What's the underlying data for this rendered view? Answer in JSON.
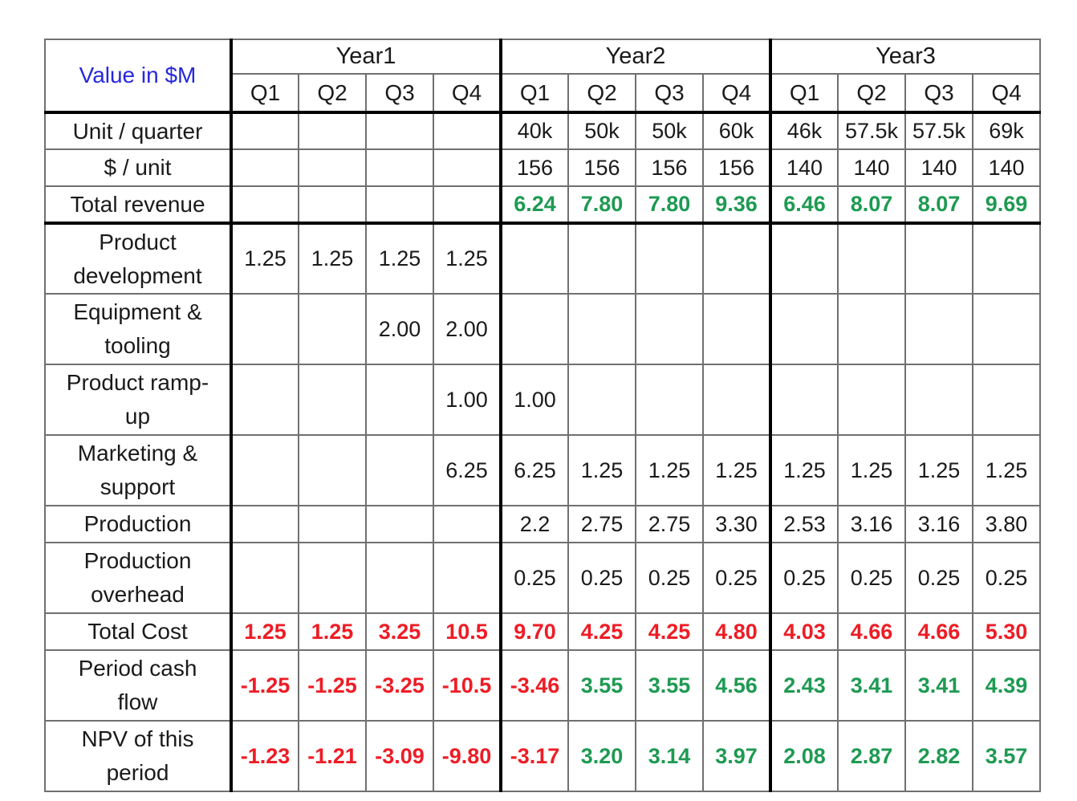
{
  "palette": {
    "title_blue": "#2727DC",
    "positive_green": "#1E9A52",
    "negative_red": "#EE1C25",
    "grid_gray": "#707070",
    "separator_black": "#000000",
    "text_black": "#1A1A1A"
  },
  "table": {
    "corner_label": "Value in $M",
    "year_headers": [
      "Year1",
      "Year2",
      "Year3"
    ],
    "quarter_headers": [
      "Q1",
      "Q2",
      "Q3",
      "Q4",
      "Q1",
      "Q2",
      "Q3",
      "Q4",
      "Q1",
      "Q2",
      "Q3",
      "Q4"
    ],
    "rows": [
      {
        "label": "Unit / quarter",
        "color": "black",
        "values": [
          "",
          "",
          "",
          "",
          "40k",
          "50k",
          "50k",
          "60k",
          "46k",
          "57.5k",
          "57.5k",
          "69k"
        ]
      },
      {
        "label": "$ / unit",
        "color": "black",
        "values": [
          "",
          "",
          "",
          "",
          "156",
          "156",
          "156",
          "156",
          "140",
          "140",
          "140",
          "140"
        ]
      },
      {
        "label": "Total revenue",
        "color": "green",
        "values": [
          "",
          "",
          "",
          "",
          "6.24",
          "7.80",
          "7.80",
          "9.36",
          "6.46",
          "8.07",
          "8.07",
          "9.69"
        ]
      },
      {
        "label": "Product development",
        "color": "black",
        "values": [
          "1.25",
          "1.25",
          "1.25",
          "1.25",
          "",
          "",
          "",
          "",
          "",
          "",
          "",
          ""
        ]
      },
      {
        "label": "Equipment & tooling",
        "color": "black",
        "values": [
          "",
          "",
          "2.00",
          "2.00",
          "",
          "",
          "",
          "",
          "",
          "",
          "",
          ""
        ]
      },
      {
        "label": "Product ramp-up",
        "color": "black",
        "values": [
          "",
          "",
          "",
          "1.00",
          "1.00",
          "",
          "",
          "",
          "",
          "",
          "",
          ""
        ]
      },
      {
        "label": "Marketing & support",
        "color": "black",
        "values": [
          "",
          "",
          "",
          "6.25",
          "6.25",
          "1.25",
          "1.25",
          "1.25",
          "1.25",
          "1.25",
          "1.25",
          "1.25"
        ]
      },
      {
        "label": "Production",
        "color": "black",
        "values": [
          "",
          "",
          "",
          "",
          "2.2",
          "2.75",
          "2.75",
          "3.30",
          "2.53",
          "3.16",
          "3.16",
          "3.80"
        ]
      },
      {
        "label": "Production overhead",
        "color": "black",
        "values": [
          "",
          "",
          "",
          "",
          "0.25",
          "0.25",
          "0.25",
          "0.25",
          "0.25",
          "0.25",
          "0.25",
          "0.25"
        ]
      },
      {
        "label": "Total Cost",
        "color": "red",
        "values": [
          "1.25",
          "1.25",
          "3.25",
          "10.5",
          "9.70",
          "4.25",
          "4.25",
          "4.80",
          "4.03",
          "4.66",
          "4.66",
          "5.30"
        ]
      },
      {
        "label": "Period cash flow",
        "color": "black",
        "values": [
          "-1.25",
          "-1.25",
          "-3.25",
          "-10.5",
          "-3.46",
          "3.55",
          "3.55",
          "4.56",
          "2.43",
          "3.41",
          "3.41",
          "4.39"
        ],
        "colors": [
          "red",
          "red",
          "red",
          "red",
          "red",
          "green",
          "green",
          "green",
          "green",
          "green",
          "green",
          "green"
        ]
      },
      {
        "label": "NPV of this period",
        "color": "black",
        "values": [
          "-1.23",
          "-1.21",
          "-3.09",
          "-9.80",
          "-3.17",
          "3.20",
          "3.14",
          "3.97",
          "2.08",
          "2.87",
          "2.82",
          "3.57"
        ],
        "colors": [
          "red",
          "red",
          "red",
          "red",
          "red",
          "green",
          "green",
          "green",
          "green",
          "green",
          "green",
          "green"
        ]
      }
    ]
  }
}
